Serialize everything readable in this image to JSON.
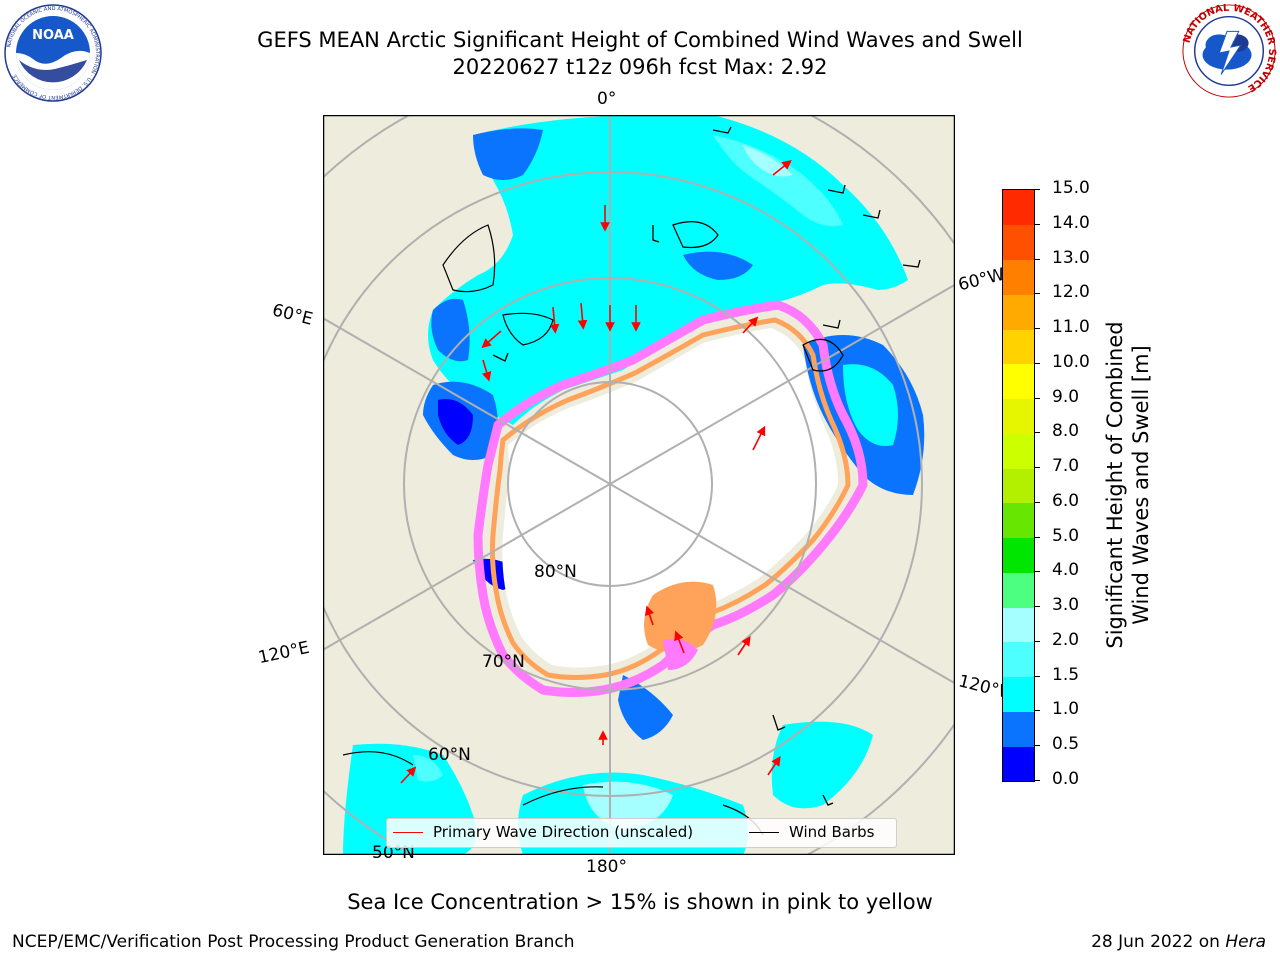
{
  "header": {
    "title_line1": "GEFS MEAN Arctic Significant Height of Combined Wind Waves and Swell",
    "title_line2": "20220627 t12z 096h fcst   Max: 2.92"
  },
  "logos": {
    "left": {
      "text": "NOAA",
      "ring_text": "NATIONAL OCEANIC AND ATMOSPHERIC ADMINISTRATION · U.S. DEPARTMENT OF COMMERCE"
    },
    "right": {
      "ring_text": "NATIONAL WEATHER SERVICE"
    }
  },
  "map": {
    "projection": "north-polar-stereographic",
    "colors": {
      "land": "#eeecdc",
      "ocean_mid": "#00ffff",
      "ocean_low": "#0a74ff",
      "ocean_lower": "#0000ff",
      "ocean_high": "#4dffff",
      "ocean_higher": "#a6ffff",
      "ice_pink": "#ff7aff",
      "ice_orange": "#ffa25a",
      "grid": "#b0b0b0",
      "wave_arrow": "#ff0000",
      "wind_barb": "#000000"
    },
    "grid_labels": {
      "lon_0": "0°",
      "lon_60w": "60°W",
      "lon_60e": "60°E",
      "lon_120e": "120°E",
      "lon_120w": "120°W",
      "lon_180": "180°",
      "lat_80": "80°N",
      "lat_70": "70°N",
      "lat_60": "60°N",
      "lat_50": "50°N"
    }
  },
  "legend": {
    "wave_label": "Primary Wave Direction (unscaled)",
    "wind_label": "Wind Barbs"
  },
  "colorbar": {
    "label": "Significant Height of Combined\nWind Waves and Swell [m]",
    "label_line1": "Significant Height of Combined",
    "label_line2": "Wind Waves and Swell [m]",
    "ticks": [
      "15.0",
      "14.0",
      "13.0",
      "12.0",
      "11.0",
      "10.0",
      "9.0",
      "8.0",
      "7.0",
      "6.0",
      "5.0",
      "4.0",
      "3.0",
      "2.0",
      "1.5",
      "1.0",
      "0.5",
      "0.0"
    ],
    "bands": [
      {
        "from": 0.0,
        "to": 0.5,
        "color": "#0000ff"
      },
      {
        "from": 0.5,
        "to": 1.0,
        "color": "#0a74ff"
      },
      {
        "from": 1.0,
        "to": 1.5,
        "color": "#00ffff"
      },
      {
        "from": 1.5,
        "to": 2.0,
        "color": "#4dffff"
      },
      {
        "from": 2.0,
        "to": 3.0,
        "color": "#a6ffff"
      },
      {
        "from": 3.0,
        "to": 4.0,
        "color": "#4dff80"
      },
      {
        "from": 4.0,
        "to": 5.0,
        "color": "#00e600"
      },
      {
        "from": 5.0,
        "to": 6.0,
        "color": "#66e600"
      },
      {
        "from": 6.0,
        "to": 7.0,
        "color": "#b3f000"
      },
      {
        "from": 7.0,
        "to": 8.0,
        "color": "#ccff00"
      },
      {
        "from": 8.0,
        "to": 9.0,
        "color": "#e6f500"
      },
      {
        "from": 9.0,
        "to": 10.0,
        "color": "#ffff00"
      },
      {
        "from": 10.0,
        "to": 11.0,
        "color": "#ffd200"
      },
      {
        "from": 11.0,
        "to": 12.0,
        "color": "#ffaa00"
      },
      {
        "from": 12.0,
        "to": 13.0,
        "color": "#ff8000"
      },
      {
        "from": 13.0,
        "to": 14.0,
        "color": "#ff5000"
      },
      {
        "from": 14.0,
        "to": 15.0,
        "color": "#ff2a00"
      },
      {
        "from": 15.0,
        "to": 15.0,
        "color": "#ff0000"
      }
    ]
  },
  "subtitle": "Sea Ice Concentration > 15% is shown in pink to yellow",
  "footer": {
    "left": "NCEP/EMC/Verification Post Processing Product Generation Branch",
    "right_date": "28 Jun 2022 on ",
    "right_host": "Hera"
  }
}
